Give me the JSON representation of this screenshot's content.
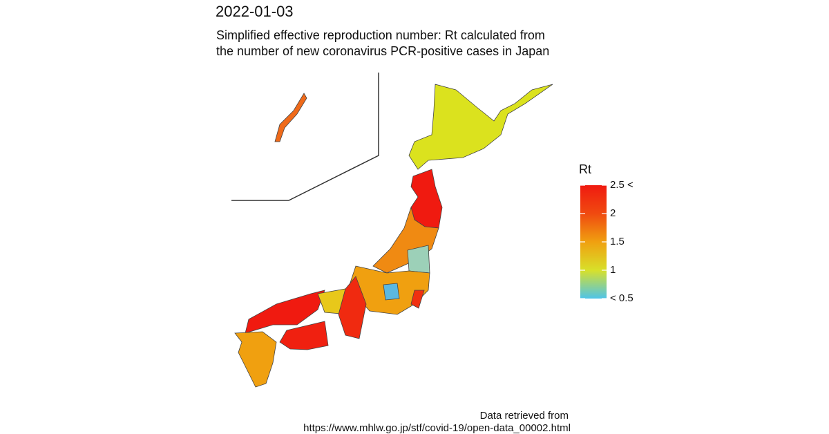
{
  "title": "2022-01-03",
  "subtitle": [
    "Simplified effective reproduction number: Rt calculated from",
    "the number of new coronavirus PCR-positive cases in Japan"
  ],
  "legend": {
    "title": "Rt",
    "range": [
      0.5,
      2.5
    ],
    "ticks": [
      {
        "value": 2.5,
        "label": "2.5 <"
      },
      2,
      1.5,
      1,
      {
        "value": 0.5,
        "label": "< 0.5"
      }
    ],
    "colors": [
      "#4fc4e8",
      "#d8e02a",
      "#f0a010",
      "#f04a10",
      "#f01a10"
    ]
  },
  "caption": [
    "Data retrieved from",
    "https://www.mhlw.go.jp/stf/covid-19/open-data_00002.html"
  ]
}
